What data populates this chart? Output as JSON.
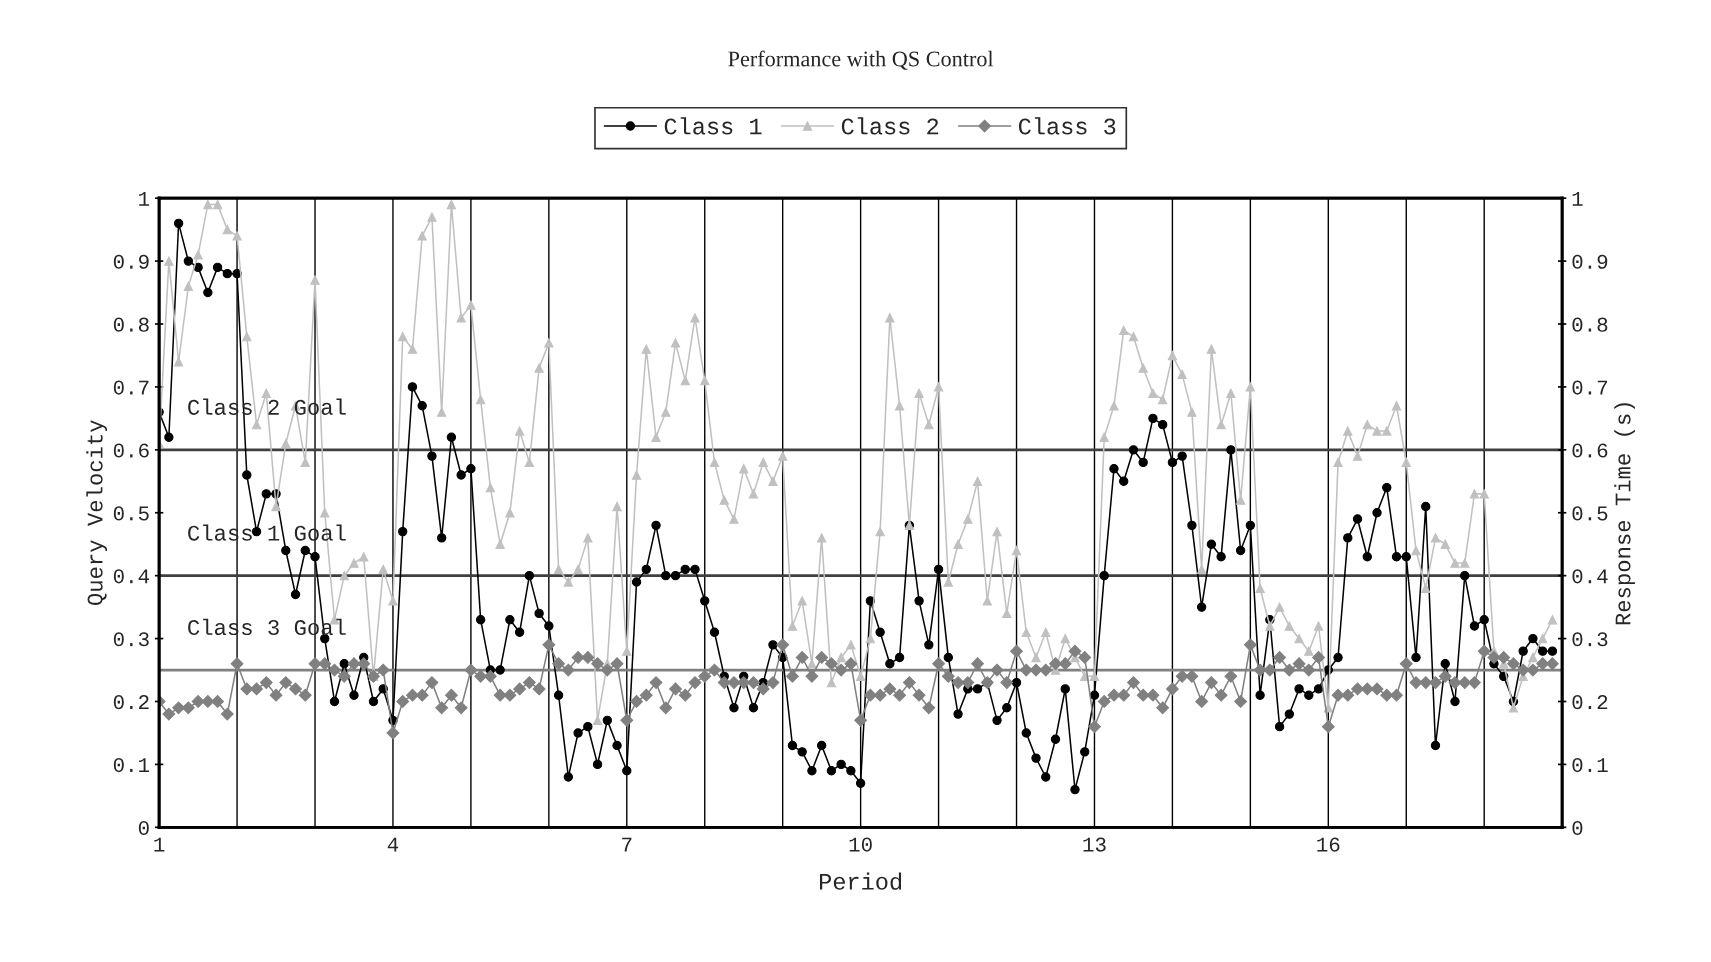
{
  "chart_data": {
    "type": "line",
    "title": "Performance with QS Control",
    "xlabel": "Period",
    "ylabel": "Query Velocity",
    "y2label": "Response Time (s)",
    "x": [
      1,
      1.125,
      1.25,
      1.375,
      1.5,
      1.625,
      1.75,
      1.875,
      2,
      2.125,
      2.25,
      2.375,
      2.5,
      2.625,
      2.75,
      2.875,
      3,
      3.125,
      3.25,
      3.375,
      3.5,
      3.625,
      3.75,
      3.875,
      4,
      4.125,
      4.25,
      4.375,
      4.5,
      4.625,
      4.75,
      4.875,
      5,
      5.125,
      5.25,
      5.375,
      5.5,
      5.625,
      5.75,
      5.875,
      6,
      6.125,
      6.25,
      6.375,
      6.5,
      6.625,
      6.75,
      6.875,
      7,
      7.125,
      7.25,
      7.375,
      7.5,
      7.625,
      7.75,
      7.875,
      8,
      8.125,
      8.25,
      8.375,
      8.5,
      8.625,
      8.75,
      8.875,
      9,
      9.125,
      9.25,
      9.375,
      9.5,
      9.625,
      9.75,
      9.875,
      10,
      10.125,
      10.25,
      10.375,
      10.5,
      10.625,
      10.75,
      10.875,
      11,
      11.125,
      11.25,
      11.375,
      11.5,
      11.625,
      11.75,
      11.875,
      12,
      12.125,
      12.25,
      12.375,
      12.5,
      12.625,
      12.75,
      12.875,
      13,
      13.125,
      13.25,
      13.375,
      13.5,
      13.625,
      13.75,
      13.875,
      14,
      14.125,
      14.25,
      14.375,
      14.5,
      14.625,
      14.75,
      14.875,
      15,
      15.125,
      15.25,
      15.375,
      15.5,
      15.625,
      15.75,
      15.875,
      16,
      16.125,
      16.25,
      16.375,
      16.5,
      16.625,
      16.75,
      16.875,
      17,
      17.125,
      17.25,
      17.375,
      17.5,
      17.625,
      17.75,
      17.875,
      18,
      18.125,
      18.25,
      18.375,
      18.5,
      18.625,
      18.75,
      18.875
    ],
    "series": [
      {
        "name": "Class 1",
        "color": "#000000",
        "marker": "circle",
        "values": [
          0.66,
          0.62,
          0.96,
          0.9,
          0.89,
          0.85,
          0.89,
          0.88,
          0.88,
          0.56,
          0.47,
          0.53,
          0.53,
          0.44,
          0.37,
          0.44,
          0.43,
          0.3,
          0.2,
          0.26,
          0.21,
          0.27,
          0.2,
          0.22,
          0.17,
          0.47,
          0.7,
          0.67,
          0.59,
          0.46,
          0.62,
          0.56,
          0.57,
          0.33,
          0.25,
          0.25,
          0.33,
          0.31,
          0.4,
          0.34,
          0.32,
          0.21,
          0.08,
          0.15,
          0.16,
          0.1,
          0.17,
          0.13,
          0.09,
          0.39,
          0.41,
          0.48,
          0.4,
          0.4,
          0.41,
          0.41,
          0.36,
          0.31,
          0.24,
          0.19,
          0.24,
          0.19,
          0.23,
          0.29,
          0.27,
          0.13,
          0.12,
          0.09,
          0.13,
          0.09,
          0.1,
          0.09,
          0.07,
          0.36,
          0.31,
          0.26,
          0.27,
          0.48,
          0.36,
          0.29,
          0.41,
          0.27,
          0.18,
          0.22,
          0.22,
          0.23,
          0.17,
          0.19,
          0.23,
          0.15,
          0.11,
          0.08,
          0.14,
          0.22,
          0.06,
          0.12,
          0.21,
          0.4,
          0.57,
          0.55,
          0.6,
          0.58,
          0.65,
          0.64,
          0.58,
          0.59,
          0.48,
          0.35,
          0.45,
          0.43,
          0.6,
          0.44,
          0.48,
          0.21,
          0.33,
          0.16,
          0.18,
          0.22,
          0.21,
          0.22,
          0.25,
          0.27,
          0.46,
          0.49,
          0.43,
          0.5,
          0.54,
          0.43,
          0.43,
          0.27,
          0.51,
          0.13,
          0.26,
          0.2,
          0.4,
          0.32,
          0.33,
          0.26,
          0.24,
          0.2,
          0.28,
          0.3,
          0.28,
          0.28
        ]
      },
      {
        "name": "Class 2",
        "color": "#c0c0c0",
        "marker": "triangle",
        "values": [
          0.61,
          0.9,
          0.74,
          0.86,
          0.91,
          0.99,
          0.99,
          0.95,
          0.94,
          0.78,
          0.64,
          0.69,
          0.51,
          0.61,
          0.67,
          0.58,
          0.87,
          0.5,
          0.33,
          0.4,
          0.42,
          0.43,
          0.24,
          0.41,
          0.36,
          0.78,
          0.76,
          0.94,
          0.97,
          0.66,
          0.99,
          0.81,
          0.83,
          0.68,
          0.54,
          0.45,
          0.5,
          0.63,
          0.58,
          0.73,
          0.77,
          0.41,
          0.39,
          0.41,
          0.46,
          0.17,
          0.26,
          0.51,
          0.28,
          0.56,
          0.76,
          0.62,
          0.66,
          0.77,
          0.71,
          0.81,
          0.71,
          0.58,
          0.52,
          0.49,
          0.57,
          0.53,
          0.58,
          0.55,
          0.59,
          0.32,
          0.36,
          0.26,
          0.46,
          0.23,
          0.27,
          0.29,
          0.24,
          0.3,
          0.47,
          0.81,
          0.67,
          0.48,
          0.69,
          0.64,
          0.7,
          0.39,
          0.45,
          0.49,
          0.55,
          0.36,
          0.47,
          0.34,
          0.44,
          0.31,
          0.27,
          0.31,
          0.25,
          0.3,
          0.27,
          0.24,
          0.24,
          0.62,
          0.67,
          0.79,
          0.78,
          0.73,
          0.69,
          0.68,
          0.75,
          0.72,
          0.66,
          0.41,
          0.76,
          0.64,
          0.69,
          0.52,
          0.7,
          0.38,
          0.32,
          0.35,
          0.32,
          0.3,
          0.28,
          0.32,
          0.19,
          0.58,
          0.63,
          0.59,
          0.64,
          0.63,
          0.63,
          0.67,
          0.58,
          0.44,
          0.38,
          0.46,
          0.45,
          0.42,
          0.42,
          0.53,
          0.53,
          0.28,
          0.26,
          0.19,
          0.24,
          0.27,
          0.3,
          0.33
        ]
      },
      {
        "name": "Class 3",
        "color": "#808080",
        "marker": "diamond",
        "values": [
          0.2,
          0.18,
          0.19,
          0.19,
          0.2,
          0.2,
          0.2,
          0.18,
          0.26,
          0.22,
          0.22,
          0.23,
          0.21,
          0.23,
          0.22,
          0.21,
          0.26,
          0.26,
          0.25,
          0.24,
          0.26,
          0.26,
          0.24,
          0.25,
          0.15,
          0.2,
          0.21,
          0.21,
          0.23,
          0.19,
          0.21,
          0.19,
          0.25,
          0.24,
          0.24,
          0.21,
          0.21,
          0.22,
          0.23,
          0.22,
          0.29,
          0.26,
          0.25,
          0.27,
          0.27,
          0.26,
          0.25,
          0.26,
          0.17,
          0.2,
          0.21,
          0.23,
          0.19,
          0.22,
          0.21,
          0.23,
          0.24,
          0.25,
          0.23,
          0.23,
          0.23,
          0.23,
          0.22,
          0.23,
          0.29,
          0.24,
          0.27,
          0.24,
          0.27,
          0.26,
          0.25,
          0.26,
          0.17,
          0.21,
          0.21,
          0.22,
          0.21,
          0.23,
          0.21,
          0.19,
          0.26,
          0.24,
          0.23,
          0.23,
          0.26,
          0.23,
          0.25,
          0.23,
          0.28,
          0.25,
          0.25,
          0.25,
          0.26,
          0.26,
          0.28,
          0.27,
          0.16,
          0.2,
          0.21,
          0.21,
          0.23,
          0.21,
          0.21,
          0.19,
          0.22,
          0.24,
          0.24,
          0.2,
          0.23,
          0.21,
          0.24,
          0.2,
          0.29,
          0.25,
          0.25,
          0.27,
          0.25,
          0.26,
          0.25,
          0.27,
          0.16,
          0.21,
          0.21,
          0.22,
          0.22,
          0.22,
          0.21,
          0.21,
          0.26,
          0.23,
          0.23,
          0.23,
          0.24,
          0.23,
          0.23,
          0.23,
          0.28,
          0.27,
          0.27,
          0.26,
          0.25,
          0.25,
          0.26,
          0.26
        ]
      }
    ],
    "xlim": [
      1,
      19
    ],
    "xticks": [
      1,
      {
        "value": 2,
        "label": null
      },
      {
        "value": 3,
        "label": null
      },
      4,
      {
        "value": 5,
        "label": null
      },
      {
        "value": 6,
        "label": null
      },
      7,
      {
        "value": 8,
        "label": null
      },
      {
        "value": 9,
        "label": null
      },
      10,
      {
        "value": 11,
        "label": null
      },
      {
        "value": 12,
        "label": null
      },
      13,
      {
        "value": 14,
        "label": null
      },
      {
        "value": 15,
        "label": null
      },
      16,
      {
        "value": 17,
        "label": null
      },
      {
        "value": 18,
        "label": null
      },
      {
        "value": 19,
        "label": null
      }
    ],
    "ylim": [
      0,
      1
    ],
    "yticks": [
      0,
      0.1,
      0.2,
      0.3,
      0.4,
      0.5,
      0.6,
      0.7,
      0.8,
      0.9,
      1
    ],
    "y2lim": [
      0,
      1
    ],
    "y2ticks": [
      0,
      0.1,
      0.2,
      0.3,
      0.4,
      0.5,
      0.6,
      0.7,
      0.8,
      0.9,
      1
    ],
    "ref_lines": [
      {
        "axis": "y",
        "value": 0.6,
        "label": "Class 2 Goal",
        "color": "#404040"
      },
      {
        "axis": "y",
        "value": 0.4,
        "label": "Class 1 Goal",
        "color": "#404040"
      },
      {
        "axis": "y",
        "value": 0.25,
        "label": "Class 3 Goal",
        "color": "#808080"
      }
    ],
    "grid": "x",
    "legend": "top",
    "line_style": "solid"
  }
}
